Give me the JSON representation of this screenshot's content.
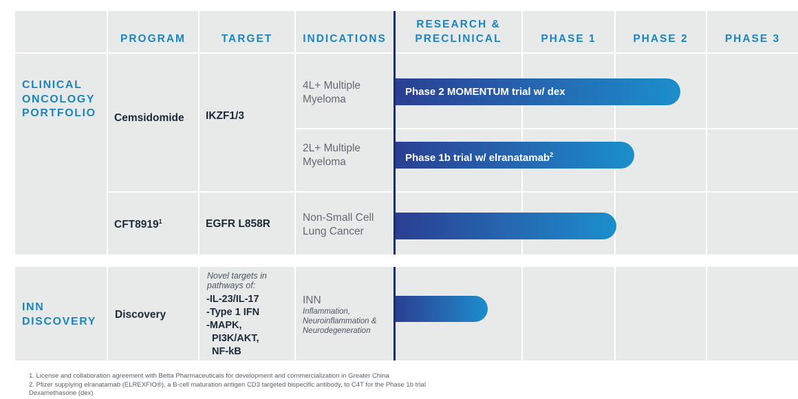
{
  "headers": {
    "program": "PROGRAM",
    "target": "TARGET",
    "indications": "INDICATIONS",
    "research_line1": "RESEARCH &",
    "research_line2": "PRECLINICAL",
    "phase1": "PHASE 1",
    "phase2": "PHASE 2",
    "phase3": "PHASE 3"
  },
  "clinical": {
    "label_line1": "CLINICAL",
    "label_line2": "ONCOLOGY",
    "label_line3": "PORTFOLIO",
    "programs": [
      {
        "program": "Cemsidomide",
        "target": "IKZF1/3",
        "indications": [
          {
            "line1": "4L+ Multiple",
            "line2": "Myeloma",
            "bar_label": "Phase 2 MOMENTUM trial w/ dex",
            "progress_phases": 2.6
          },
          {
            "line1": "2L+ Multiple",
            "line2": "Myeloma",
            "bar_label": "Phase 1b trial w/ elranatamab",
            "bar_sup": "2",
            "progress_phases": 2.1
          }
        ]
      },
      {
        "program": "CFT8919",
        "program_sup": "1",
        "target": "EGFR L858R",
        "indications": [
          {
            "line1": "Non-Small Cell",
            "line2": "Lung Cancer",
            "bar_label": "",
            "progress_phases": 1.9
          }
        ]
      }
    ]
  },
  "inn": {
    "label_line1": "INN",
    "label_line2": "DISCOVERY",
    "program": "Discovery",
    "target_intro_line1": "Novel targets in",
    "target_intro_line2": "pathways of:",
    "targets": [
      "-IL-23/IL-17",
      "-Type 1 IFN",
      "-MAPK,",
      "PI3K/AKT,",
      "NF-kB"
    ],
    "indication_title": "INN",
    "indication_sub_line1": "Inflammation,",
    "indication_sub_line2": "Neuroinflammation &",
    "indication_sub_line3": "Neurodegeneration",
    "progress_phases": 0.65
  },
  "footnotes": {
    "line1": "1. License and collaboration agreement with Betta Pharmaceuticals for development and commercialization in Greater China",
    "line2": "2. Pfizer supplying elranatamab (ELREXFIO®), a B-cell maturation antigen CD3 targeted bispecific antibody, to C4T for the Phase 1b trial",
    "line3": "Dexamethasone (dex)"
  },
  "colors": {
    "accent": "#1b86bd",
    "cell_bg": "#e8e9e9",
    "divider": "#1a2b66",
    "bar_start": "#2a3f92",
    "bar_end": "#1b8fcb"
  }
}
